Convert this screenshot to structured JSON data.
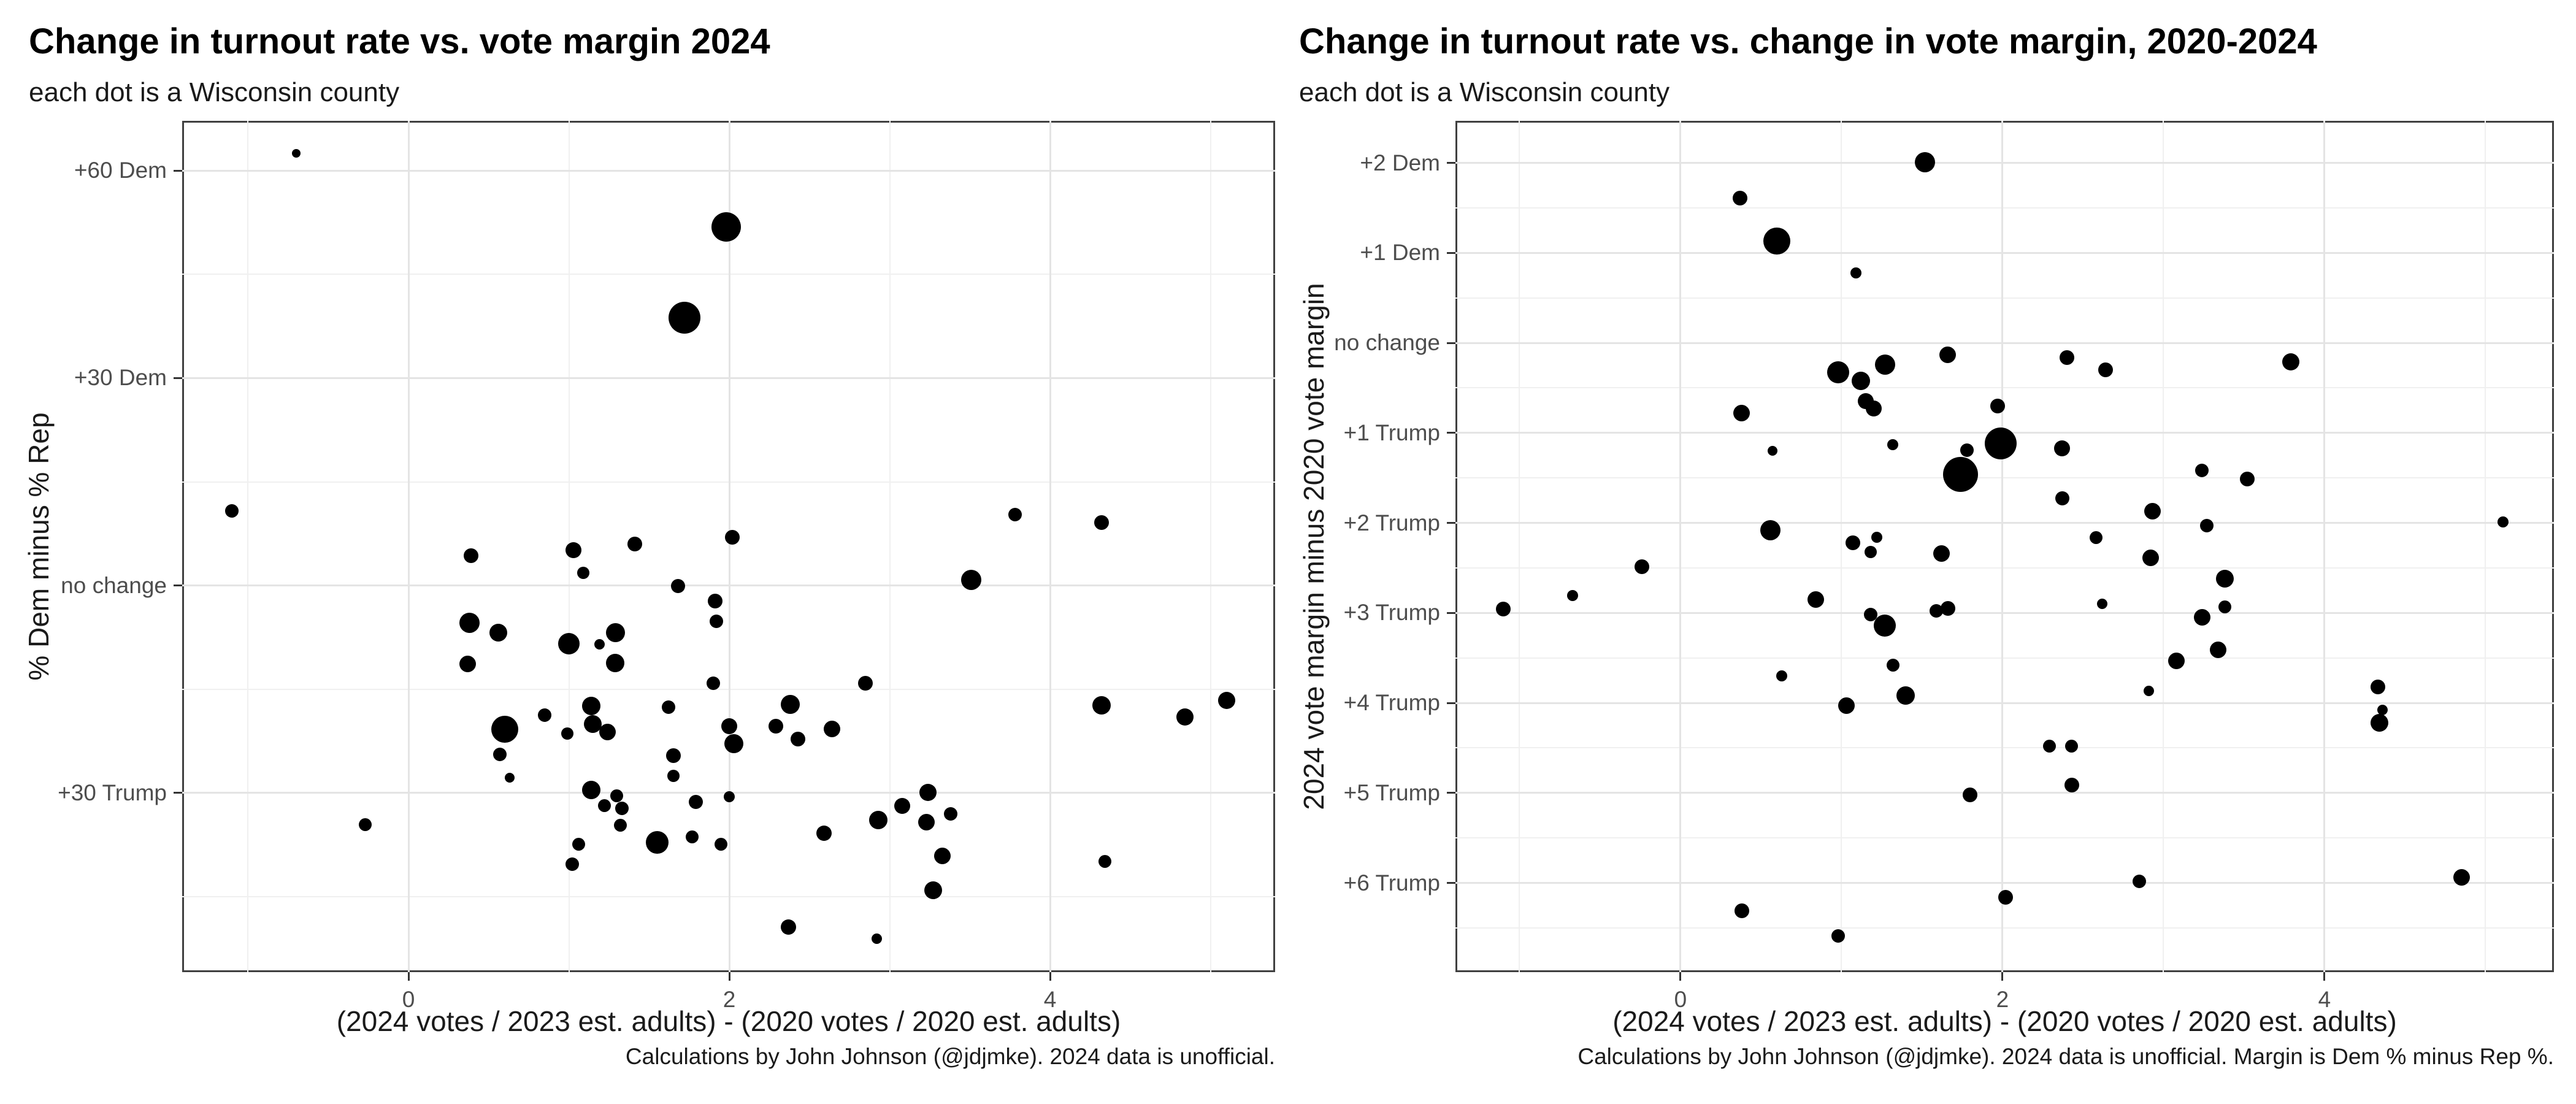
{
  "page": {
    "background": "#ffffff",
    "dot_color": "#000000",
    "grid_major_color": "#e4e4e4",
    "grid_minor_color": "#f0f0f0",
    "panel_border_color": "#404040",
    "tick_text_color": "#4d4d4d"
  },
  "charts": [
    {
      "title": "Change in turnout rate vs. vote margin 2024",
      "subtitle": "each dot is a Wisconsin county",
      "xlabel": "(2024 votes / 2023 est. adults) - (2020 votes / 2020 est. adults)",
      "ylabel": "% Dem minus % Rep",
      "caption": "Calculations by John Johnson (@jdjmke). 2024 data is unofficial.",
      "chart_data": {
        "type": "scatter",
        "xlim": [
          -1.411,
          5.403
        ],
        "ylim": [
          -55.9,
          67.2
        ],
        "grid": true,
        "x_ticks": [
          {
            "value": 0,
            "label": "0"
          },
          {
            "value": 2,
            "label": "2"
          },
          {
            "value": 4,
            "label": "4"
          }
        ],
        "x_minor": [
          -1,
          1,
          3,
          5
        ],
        "y_ticks": [
          {
            "value": 60,
            "label": "+60 Dem"
          },
          {
            "value": 30,
            "label": "+30 Dem"
          },
          {
            "value": 0,
            "label": "no change"
          },
          {
            "value": -30,
            "label": "+30 Trump"
          }
        ],
        "y_minor": [
          45,
          15,
          -15,
          -45
        ],
        "points_format": [
          "x",
          "y",
          "diameter_px"
        ],
        "points": [
          [
            -0.7,
            62.5,
            14
          ],
          [
            1.98,
            51.9,
            48
          ],
          [
            1.72,
            38.7,
            52
          ],
          [
            -1.1,
            10.8,
            22
          ],
          [
            3.78,
            10.3,
            22
          ],
          [
            4.32,
            9.1,
            24
          ],
          [
            2.02,
            7.0,
            24
          ],
          [
            0.39,
            4.3,
            24
          ],
          [
            1.03,
            5.1,
            26
          ],
          [
            1.41,
            6.0,
            24
          ],
          [
            1.09,
            1.8,
            20
          ],
          [
            1.68,
            -0.1,
            23
          ],
          [
            1.91,
            -2.2,
            24
          ],
          [
            1.92,
            -5.2,
            22
          ],
          [
            0.38,
            -5.4,
            33
          ],
          [
            0.56,
            -6.8,
            29
          ],
          [
            1.0,
            -8.4,
            35
          ],
          [
            1.19,
            -8.5,
            17
          ],
          [
            1.29,
            -6.8,
            31
          ],
          [
            0.37,
            -11.3,
            27
          ],
          [
            1.29,
            -11.2,
            30
          ],
          [
            1.9,
            -14.1,
            22
          ],
          [
            1.14,
            -17.4,
            30
          ],
          [
            0.85,
            -18.7,
            22
          ],
          [
            0.6,
            -20.8,
            44
          ],
          [
            1.15,
            -20.0,
            29
          ],
          [
            1.24,
            -21.2,
            27
          ],
          [
            0.99,
            -21.4,
            20
          ],
          [
            0.57,
            -24.4,
            22
          ],
          [
            1.62,
            -17.6,
            22
          ],
          [
            1.65,
            -24.6,
            24
          ],
          [
            1.65,
            -27.5,
            20
          ],
          [
            0.63,
            -27.8,
            16
          ],
          [
            1.14,
            -29.6,
            30
          ],
          [
            1.22,
            -31.8,
            21
          ],
          [
            1.3,
            -30.4,
            21
          ],
          [
            1.33,
            -32.2,
            22
          ],
          [
            -0.27,
            -34.6,
            21
          ],
          [
            1.32,
            -34.7,
            21
          ],
          [
            1.06,
            -37.4,
            21
          ],
          [
            1.55,
            -37.1,
            37
          ],
          [
            1.79,
            -31.3,
            23
          ],
          [
            1.77,
            -36.3,
            21
          ],
          [
            1.95,
            -37.4,
            21
          ],
          [
            1.02,
            -40.3,
            22
          ],
          [
            2.0,
            -20.3,
            26
          ],
          [
            2.0,
            -30.5,
            18
          ],
          [
            3.51,
            0.8,
            33
          ],
          [
            2.85,
            -14.1,
            24
          ],
          [
            2.38,
            -17.2,
            31
          ],
          [
            2.29,
            -20.3,
            24
          ],
          [
            2.64,
            -20.7,
            27
          ],
          [
            2.43,
            -22.2,
            24
          ],
          [
            2.03,
            -22.9,
            31
          ],
          [
            3.08,
            -31.9,
            26
          ],
          [
            2.93,
            -33.9,
            30
          ],
          [
            3.24,
            -29.9,
            28
          ],
          [
            3.23,
            -34.2,
            27
          ],
          [
            3.38,
            -33.0,
            22
          ],
          [
            2.59,
            -35.8,
            25
          ],
          [
            3.33,
            -39.1,
            27
          ],
          [
            3.27,
            -44.1,
            29
          ],
          [
            4.32,
            -17.3,
            30
          ],
          [
            4.84,
            -19.0,
            28
          ],
          [
            5.1,
            -16.6,
            28
          ],
          [
            4.34,
            -39.9,
            21
          ],
          [
            2.37,
            -49.4,
            25
          ],
          [
            2.92,
            -51.1,
            17
          ]
        ]
      }
    },
    {
      "title": "Change in turnout rate vs. change in vote margin, 2020-2024",
      "subtitle": "each dot is a Wisconsin county",
      "xlabel": "(2024 votes / 2023 est. adults) - (2020 votes / 2020 est. adults)",
      "ylabel": "2024 vote margin minus 2020 vote margin",
      "caption": "Calculations by John Johnson (@jdjmke). 2024 data is unofficial. Margin is Dem % minus Rep %.",
      "chart_data": {
        "type": "scatter",
        "xlim": [
          -1.398,
          5.425
        ],
        "ylim": [
          -6.991,
          2.467
        ],
        "grid": true,
        "x_ticks": [
          {
            "value": 0,
            "label": "0"
          },
          {
            "value": 2,
            "label": "2"
          },
          {
            "value": 4,
            "label": "4"
          }
        ],
        "x_minor": [
          -1,
          1,
          3,
          5
        ],
        "y_ticks": [
          {
            "value": 2,
            "label": "+2 Dem"
          },
          {
            "value": 1,
            "label": "+1 Dem"
          },
          {
            "value": 0,
            "label": "no change"
          },
          {
            "value": -1,
            "label": "+1 Trump"
          },
          {
            "value": -2,
            "label": "+2 Trump"
          },
          {
            "value": -3,
            "label": "+3 Trump"
          },
          {
            "value": -4,
            "label": "+4 Trump"
          },
          {
            "value": -5,
            "label": "+5 Trump"
          },
          {
            "value": -6,
            "label": "+6 Trump"
          }
        ],
        "y_minor": [
          1.5,
          0.5,
          -0.5,
          -1.5,
          -2.5,
          -3.5,
          -4.5,
          -5.5,
          -6.5
        ],
        "points_format": [
          "x",
          "y",
          "diameter_px"
        ],
        "points": [
          [
            1.52,
            2.01,
            33
          ],
          [
            0.37,
            1.61,
            24
          ],
          [
            0.6,
            1.13,
            44
          ],
          [
            1.09,
            0.78,
            18
          ],
          [
            1.66,
            -0.13,
            27
          ],
          [
            1.27,
            -0.24,
            33
          ],
          [
            0.98,
            -0.33,
            36
          ],
          [
            1.12,
            -0.42,
            30
          ],
          [
            1.15,
            -0.65,
            26
          ],
          [
            1.2,
            -0.73,
            26
          ],
          [
            0.38,
            -0.78,
            27
          ],
          [
            1.97,
            -0.7,
            24
          ],
          [
            1.32,
            -1.13,
            18
          ],
          [
            0.57,
            -1.2,
            16
          ],
          [
            1.99,
            -1.12,
            52
          ],
          [
            1.74,
            -1.46,
            57
          ],
          [
            1.78,
            -1.19,
            22
          ],
          [
            0.56,
            -2.08,
            33
          ],
          [
            2.4,
            -0.16,
            24
          ],
          [
            2.64,
            -0.3,
            24
          ],
          [
            3.79,
            -0.21,
            28
          ],
          [
            2.37,
            -1.17,
            26
          ],
          [
            3.24,
            -1.42,
            22
          ],
          [
            3.52,
            -1.51,
            24
          ],
          [
            2.37,
            -1.73,
            23
          ],
          [
            2.93,
            -1.87,
            27
          ],
          [
            3.27,
            -2.03,
            22
          ],
          [
            5.11,
            -1.99,
            18
          ],
          [
            2.58,
            -2.16,
            21
          ],
          [
            1.07,
            -2.22,
            24
          ],
          [
            1.22,
            -2.16,
            18
          ],
          [
            1.18,
            -2.32,
            20
          ],
          [
            1.62,
            -2.34,
            27
          ],
          [
            -0.24,
            -2.49,
            24
          ],
          [
            -0.67,
            -2.81,
            18
          ],
          [
            -1.1,
            -2.96,
            24
          ],
          [
            0.84,
            -2.85,
            27
          ],
          [
            1.18,
            -3.02,
            22
          ],
          [
            1.27,
            -3.14,
            36
          ],
          [
            1.59,
            -2.98,
            22
          ],
          [
            1.66,
            -2.95,
            24
          ],
          [
            1.32,
            -3.58,
            21
          ],
          [
            0.63,
            -3.7,
            18
          ],
          [
            1.4,
            -3.92,
            30
          ],
          [
            1.03,
            -4.03,
            27
          ],
          [
            1.8,
            -5.02,
            24
          ],
          [
            0.38,
            -6.31,
            24
          ],
          [
            0.98,
            -6.59,
            22
          ],
          [
            2.02,
            -6.16,
            24
          ],
          [
            2.92,
            -2.39,
            27
          ],
          [
            3.38,
            -2.62,
            29
          ],
          [
            2.62,
            -2.9,
            17
          ],
          [
            3.24,
            -3.05,
            27
          ],
          [
            3.38,
            -2.93,
            21
          ],
          [
            3.34,
            -3.41,
            27
          ],
          [
            3.08,
            -3.53,
            27
          ],
          [
            2.91,
            -3.87,
            17
          ],
          [
            4.33,
            -3.82,
            24
          ],
          [
            4.36,
            -4.08,
            17
          ],
          [
            4.34,
            -4.22,
            29
          ],
          [
            2.29,
            -4.48,
            21
          ],
          [
            2.43,
            -4.48,
            21
          ],
          [
            2.43,
            -4.91,
            24
          ],
          [
            2.85,
            -5.98,
            22
          ],
          [
            4.85,
            -5.94,
            27
          ]
        ]
      }
    }
  ]
}
